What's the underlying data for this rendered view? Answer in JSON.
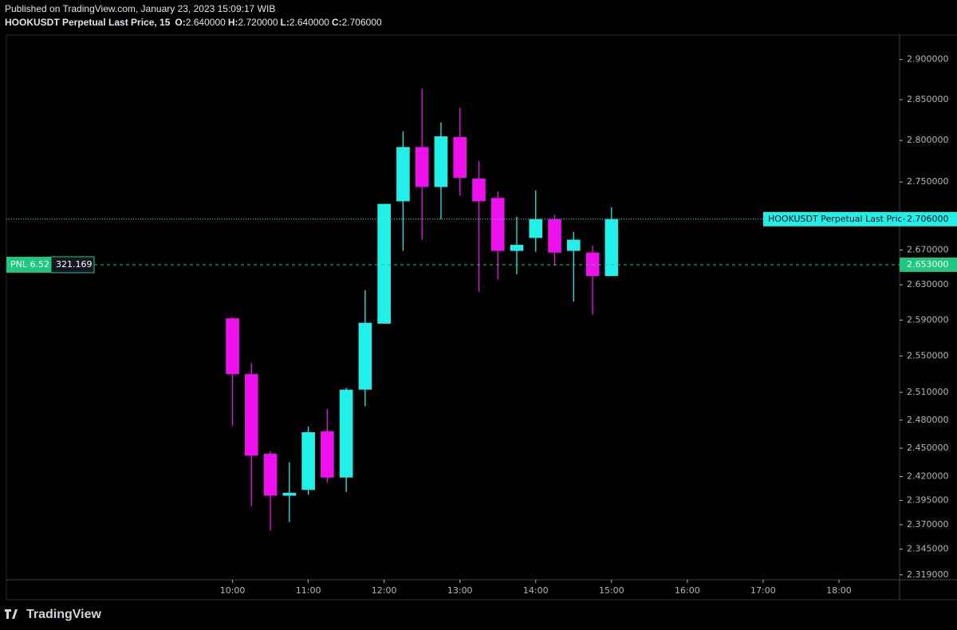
{
  "header": {
    "published": "Published on TradingView.com, January 23, 2023 15:09:17 WIB",
    "symbol": "HOOKUSDT Perpetual Last Price, 15",
    "ohlc": [
      {
        "key": "O:",
        "text": "2.640000"
      },
      {
        "key": "H:",
        "text": "2.720000"
      },
      {
        "key": "L:",
        "text": "2.640000"
      },
      {
        "key": "C:",
        "text": "2.706000"
      }
    ]
  },
  "footer": {
    "brand": "TradingView"
  },
  "chart_data": {
    "type": "candlestick",
    "log": true,
    "x": [
      "10:00",
      "10:15",
      "10:30",
      "10:45",
      "11:00",
      "11:15",
      "11:30",
      "11:45",
      "12:00",
      "12:15",
      "12:30",
      "12:45",
      "13:00",
      "13:15",
      "13:30",
      "13:45",
      "14:00",
      "14:15",
      "14:30",
      "14:45",
      "15:00"
    ],
    "open": [
      2.592,
      2.53,
      2.444,
      2.4,
      2.406,
      2.468,
      2.419,
      2.513,
      2.586,
      2.727,
      2.792,
      2.744,
      2.804,
      2.754,
      2.731,
      2.669,
      2.684,
      2.706,
      2.669,
      2.667,
      2.64
    ],
    "high": [
      2.593,
      2.542,
      2.447,
      2.435,
      2.473,
      2.492,
      2.515,
      2.624,
      2.724,
      2.811,
      2.864,
      2.822,
      2.84,
      2.775,
      2.739,
      2.709,
      2.74,
      2.711,
      2.691,
      2.675,
      2.72
    ],
    "low": [
      2.474,
      2.389,
      2.364,
      2.373,
      2.401,
      2.414,
      2.404,
      2.495,
      2.586,
      2.669,
      2.682,
      2.706,
      2.734,
      2.622,
      2.636,
      2.642,
      2.668,
      2.652,
      2.611,
      2.596,
      2.64
    ],
    "close": [
      2.53,
      2.442,
      2.4,
      2.403,
      2.467,
      2.419,
      2.513,
      2.587,
      2.724,
      2.792,
      2.744,
      2.805,
      2.755,
      2.727,
      2.669,
      2.676,
      2.706,
      2.667,
      2.682,
      2.64,
      2.706
    ],
    "up_color": "#22f0e8",
    "down_color": "#ee11ee",
    "xlim": [
      "07:01",
      "18:48"
    ],
    "xticks": [
      "10:00",
      "11:00",
      "12:00",
      "13:00",
      "14:00",
      "15:00",
      "16:00",
      "17:00",
      "18:00"
    ],
    "ylim": [
      2.314,
      2.931
    ],
    "yticks": [
      {
        "value": 2.9,
        "label": "2.900000"
      },
      {
        "value": 2.85,
        "label": "2.850000"
      },
      {
        "value": 2.8,
        "label": "2.800000"
      },
      {
        "value": 2.75,
        "label": "2.750000"
      },
      {
        "value": 2.67,
        "label": "2.670000"
      },
      {
        "value": 2.63,
        "label": "2.630000"
      },
      {
        "value": 2.59,
        "label": "2.590000"
      },
      {
        "value": 2.55,
        "label": "2.550000"
      },
      {
        "value": 2.51,
        "label": "2.510000"
      },
      {
        "value": 2.48,
        "label": "2.480000"
      },
      {
        "value": 2.45,
        "label": "2.450000"
      },
      {
        "value": 2.42,
        "label": "2.420000"
      },
      {
        "value": 2.395,
        "label": "2.395000"
      },
      {
        "value": 2.37,
        "label": "2.370000"
      },
      {
        "value": 2.345,
        "label": "2.345000"
      },
      {
        "value": 2.319,
        "label": "2.319000"
      }
    ],
    "last_price": {
      "name": "HOOKUSDT Perpetual Last Pric-",
      "value": 2.706,
      "label": "2.706000",
      "color": "#22f0e8"
    },
    "position": {
      "pnl": "PNL 6.52",
      "amount": "321.169",
      "value": 2.653,
      "label": "2.653000",
      "color": "#1fc77f"
    }
  }
}
